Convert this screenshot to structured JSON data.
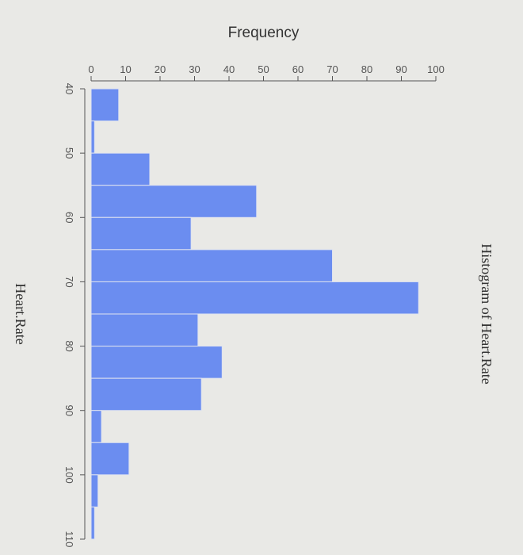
{
  "chart_data": {
    "type": "bar",
    "orientation": "rotated-90-clockwise",
    "title": "Histogram of Heart.Rate",
    "xlabel": "Heart.Rate",
    "ylabel": "Frequency",
    "bin_width": 5,
    "bins": [
      {
        "start": 40,
        "end": 45,
        "count": 8
      },
      {
        "start": 45,
        "end": 50,
        "count": 1
      },
      {
        "start": 50,
        "end": 55,
        "count": 17
      },
      {
        "start": 55,
        "end": 60,
        "count": 48
      },
      {
        "start": 60,
        "end": 65,
        "count": 29
      },
      {
        "start": 65,
        "end": 70,
        "count": 70
      },
      {
        "start": 70,
        "end": 75,
        "count": 95
      },
      {
        "start": 75,
        "end": 80,
        "count": 31
      },
      {
        "start": 80,
        "end": 85,
        "count": 38
      },
      {
        "start": 85,
        "end": 90,
        "count": 32
      },
      {
        "start": 90,
        "end": 95,
        "count": 3
      },
      {
        "start": 95,
        "end": 100,
        "count": 11
      },
      {
        "start": 100,
        "end": 105,
        "count": 2
      },
      {
        "start": 105,
        "end": 110,
        "count": 1
      }
    ],
    "xlim": [
      40,
      110
    ],
    "ylim": [
      0,
      100
    ],
    "x_ticks": [
      "40",
      "50",
      "60",
      "70",
      "80",
      "90",
      "100",
      "110"
    ],
    "y_ticks": [
      "0",
      "10",
      "20",
      "30",
      "40",
      "50",
      "60",
      "70",
      "80",
      "90",
      "100"
    ],
    "bar_color": "#6b8df0",
    "grid": false
  }
}
